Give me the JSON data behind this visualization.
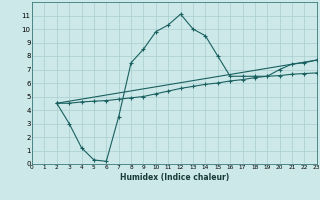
{
  "xlabel": "Humidex (Indice chaleur)",
  "xlim": [
    0,
    23
  ],
  "ylim": [
    0,
    12
  ],
  "xticks": [
    0,
    1,
    2,
    3,
    4,
    5,
    6,
    7,
    8,
    9,
    10,
    11,
    12,
    13,
    14,
    15,
    16,
    17,
    18,
    19,
    20,
    21,
    22,
    23
  ],
  "yticks": [
    0,
    1,
    2,
    3,
    4,
    5,
    6,
    7,
    8,
    9,
    10,
    11
  ],
  "bg_color": "#cce8e8",
  "grid_color": "#aacece",
  "line_color": "#1a6060",
  "curve1_x": [
    2,
    3,
    4,
    5,
    6,
    7,
    8,
    9,
    10,
    11,
    12,
    13,
    14,
    15,
    16,
    17,
    18,
    19,
    20,
    21,
    22,
    23
  ],
  "curve1_y": [
    4.5,
    3.0,
    1.2,
    0.3,
    0.2,
    3.5,
    7.5,
    8.5,
    9.8,
    10.3,
    11.1,
    10.0,
    9.5,
    8.0,
    6.5,
    6.5,
    6.5,
    6.5,
    7.0,
    7.4,
    7.5,
    7.7
  ],
  "curve2_x": [
    2,
    3,
    4,
    5,
    6,
    7,
    8,
    9,
    10,
    11,
    12,
    13,
    14,
    15,
    16,
    17,
    18,
    19,
    20,
    21,
    22,
    23
  ],
  "curve2_y": [
    4.5,
    4.5,
    4.6,
    4.65,
    4.7,
    4.8,
    4.9,
    5.0,
    5.2,
    5.4,
    5.6,
    5.75,
    5.9,
    6.0,
    6.15,
    6.25,
    6.4,
    6.5,
    6.55,
    6.65,
    6.7,
    6.75
  ],
  "curve3_x": [
    2,
    23
  ],
  "curve3_y": [
    4.5,
    7.7
  ],
  "marker": "+"
}
